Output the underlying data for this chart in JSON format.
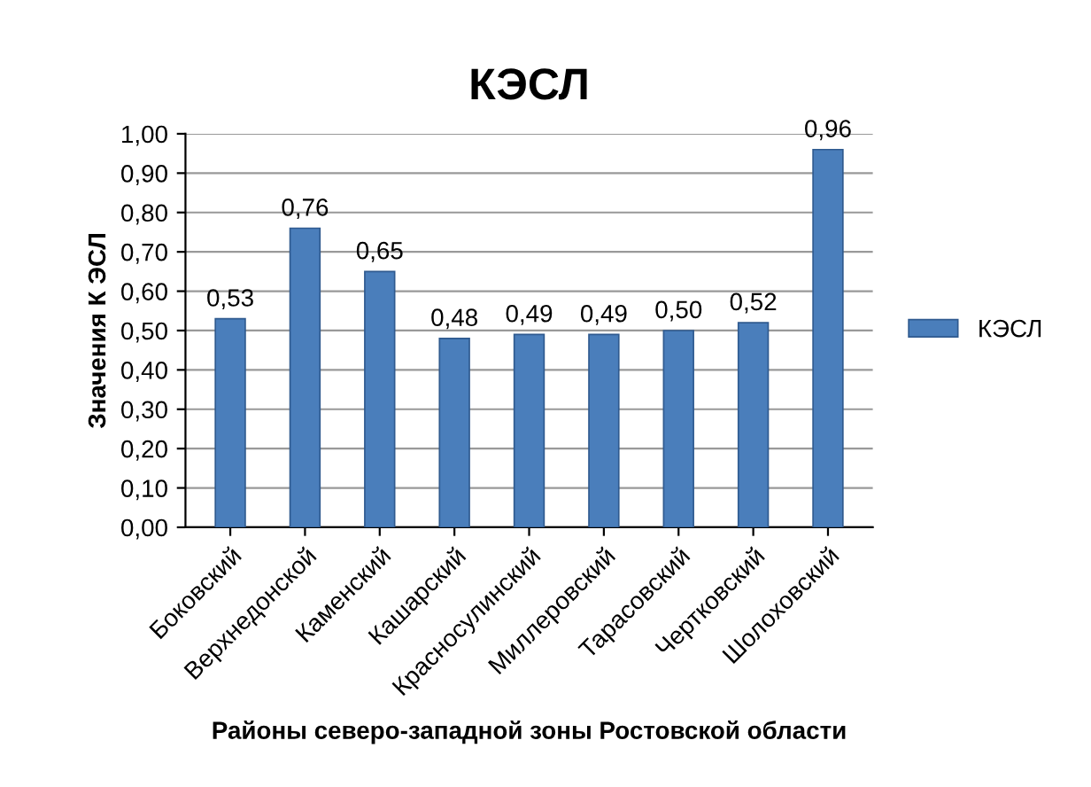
{
  "chart_data": {
    "type": "bar",
    "title": "КЭСЛ",
    "xlabel": "Районы северо-западной зоны Ростовской области",
    "ylabel": "Значения К ЭСЛ",
    "categories": [
      "Боковский",
      "Верхнедонской",
      "Каменский",
      "Кашарский",
      "Красносулинский",
      "Миллеровский",
      "Тарасовский",
      "Чертковский",
      "Шолоховский"
    ],
    "series": [
      {
        "name": "КЭСЛ",
        "color": "#4a7ebb",
        "values": [
          0.53,
          0.76,
          0.65,
          0.48,
          0.49,
          0.49,
          0.5,
          0.52,
          0.96
        ],
        "value_labels": [
          "0,53",
          "0,76",
          "0,65",
          "0,48",
          "0,49",
          "0,49",
          "0,50",
          "0,52",
          "0,96"
        ]
      }
    ],
    "ylim": [
      0,
      1
    ],
    "yticks": [
      {
        "value": 0,
        "label": "0,00"
      },
      {
        "value": 0.1,
        "label": "0,10"
      },
      {
        "value": 0.2,
        "label": "0,20"
      },
      {
        "value": 0.3,
        "label": "0,30"
      },
      {
        "value": 0.4,
        "label": "0,40"
      },
      {
        "value": 0.5,
        "label": "0,50"
      },
      {
        "value": 0.6,
        "label": "0,60"
      },
      {
        "value": 0.7,
        "label": "0,70"
      },
      {
        "value": 0.8,
        "label": "0,80"
      },
      {
        "value": 0.9,
        "label": "0,90"
      },
      {
        "value": 1,
        "label": "1,00"
      }
    ],
    "grid": "y",
    "legend": "right"
  }
}
